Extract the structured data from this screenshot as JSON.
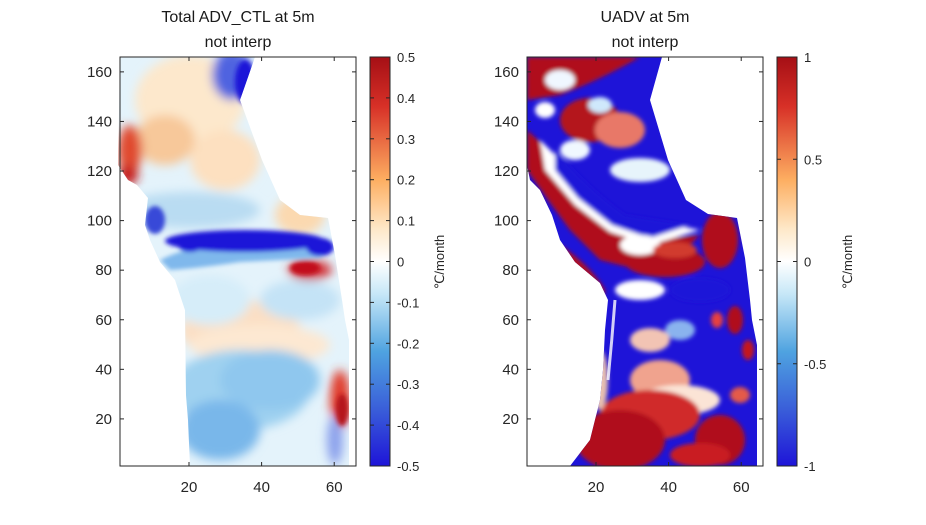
{
  "chart_data": [
    {
      "type": "heatmap",
      "title": "Total ADV_CTL at 5m",
      "subtitle": "not interp",
      "xlim": [
        1,
        66
      ],
      "ylim": [
        1,
        166
      ],
      "xticks": [
        20,
        40,
        60
      ],
      "yticks": [
        20,
        40,
        60,
        80,
        100,
        120,
        140,
        160
      ],
      "colorbar": {
        "colormap": "blue-white-red",
        "clim": [
          -0.5,
          0.5
        ],
        "ticks": [
          "0.5",
          "0.4",
          "0.3",
          "0.2",
          "0.1",
          "0",
          "-0.1",
          "-0.2",
          "-0.3",
          "-0.4",
          "-0.5"
        ],
        "label": "℃/month"
      }
    },
    {
      "type": "heatmap",
      "title": "UADV at 5m",
      "subtitle": "not interp",
      "xlim": [
        1,
        66
      ],
      "ylim": [
        1,
        166
      ],
      "xticks": [
        20,
        40,
        60
      ],
      "yticks": [
        20,
        40,
        60,
        80,
        100,
        120,
        140,
        160
      ],
      "colorbar": {
        "colormap": "blue-white-red",
        "clim": [
          -1,
          1
        ],
        "ticks": [
          "1",
          "0.5",
          "0",
          "-0.5",
          "-1"
        ],
        "label": "℃/month"
      }
    }
  ],
  "colors": {
    "deep_red": "#a50f15",
    "red": "#d73027",
    "orange": "#fdae61",
    "cream": "#fee8c8",
    "white": "#ffffff",
    "light_blue": "#c6e7f7",
    "blue": "#4575b4",
    "deep_blue": "#1e14d8"
  }
}
